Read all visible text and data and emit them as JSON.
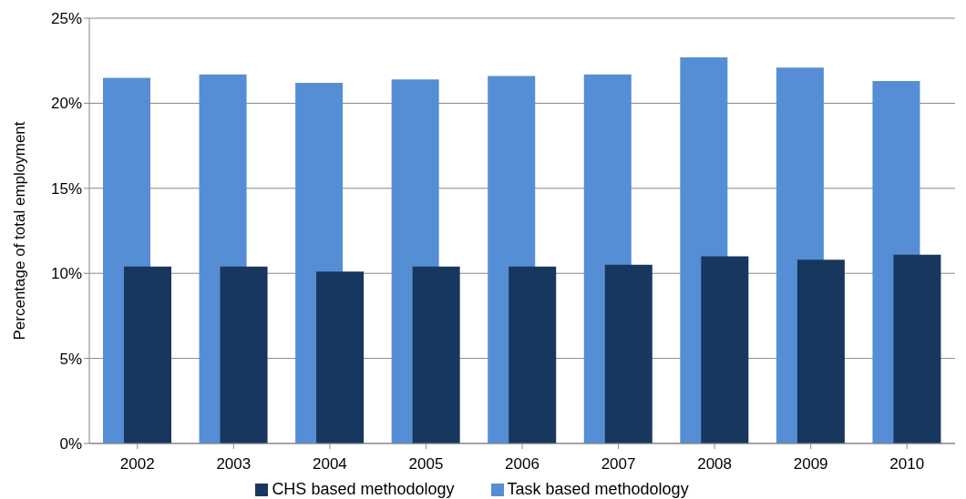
{
  "chart_data": {
    "type": "bar",
    "ylabel": "Percentage of total employment",
    "categories": [
      "2002",
      "2003",
      "2004",
      "2005",
      "2006",
      "2007",
      "2008",
      "2009",
      "2010"
    ],
    "series": [
      {
        "name": "Task based methodology",
        "color": "#558ed5",
        "values": [
          21.5,
          21.7,
          21.2,
          21.4,
          21.6,
          21.7,
          22.7,
          22.1,
          21.3
        ]
      },
      {
        "name": "CHS based methodology",
        "color": "#17375e",
        "values": [
          10.4,
          10.4,
          10.1,
          10.4,
          10.4,
          10.5,
          11.0,
          10.8,
          11.1
        ]
      }
    ],
    "ylim": [
      0,
      25
    ],
    "yticks": [
      {
        "value": 0,
        "label": "0%"
      },
      {
        "value": 5,
        "label": "5%"
      },
      {
        "value": 10,
        "label": "10%"
      },
      {
        "value": 15,
        "label": "15%"
      },
      {
        "value": 20,
        "label": "20%"
      },
      {
        "value": 25,
        "label": "25%"
      }
    ],
    "grid": "y",
    "legend": "bottom"
  }
}
